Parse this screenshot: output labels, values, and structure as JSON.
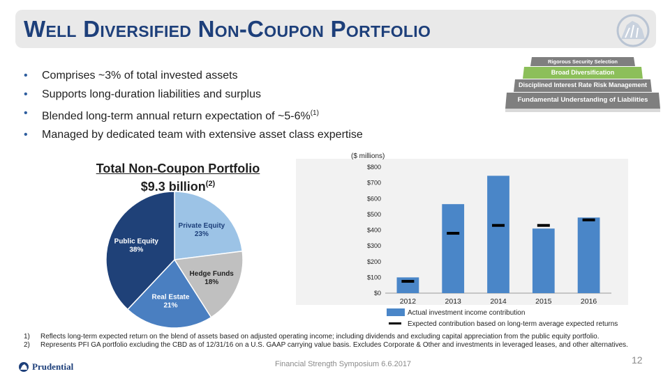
{
  "header": {
    "title": "Well Diversified Non-Coupon Portfolio"
  },
  "pyramid": {
    "levels": [
      "Rigorous Security Selection",
      "Broad Diversification",
      "Disciplined Interest Rate Risk Management",
      "Fundamental Understanding of Liabilities"
    ],
    "highlight_color": "#8cbf5a"
  },
  "bullets": [
    {
      "text": "Comprises ~3% of total invested assets",
      "sup": ""
    },
    {
      "text": "Supports long-duration liabilities and surplus",
      "sup": ""
    },
    {
      "text": "Blended long-term annual return expectation of ~5-6%",
      "sup": "(1)"
    },
    {
      "text": "Managed by dedicated team with extensive asset class expertise",
      "sup": ""
    }
  ],
  "pie": {
    "title_line1": "Total Non-Coupon Portfolio",
    "title_line2": "$9.3 billion",
    "title_sup": "(2)"
  },
  "chart_data": [
    {
      "type": "pie",
      "slices": [
        {
          "label": "Private Equity",
          "value": 23,
          "value_label": "23%",
          "color": "#9cc3e6",
          "text_color": "#1d3f7a"
        },
        {
          "label": "Hedge Funds",
          "value": 18,
          "value_label": "18%",
          "color": "#c0c0c0",
          "text_color": "#1f1f1f"
        },
        {
          "label": "Real Estate",
          "value": 21,
          "value_label": "21%",
          "color": "#4a7fc1",
          "text_color": "#ffffff"
        },
        {
          "label": "Public Equity",
          "value": 38,
          "value_label": "38%",
          "color": "#1f4178",
          "text_color": "#ffffff"
        }
      ]
    },
    {
      "type": "bar",
      "unit_label": "($ millions)",
      "categories": [
        "2012",
        "2013",
        "2014",
        "2015",
        "2016"
      ],
      "series": [
        {
          "name": "Actual investment income contribution",
          "values": [
            100,
            565,
            745,
            410,
            480
          ],
          "color": "#4a86c8"
        },
        {
          "name": "Expected contribution based on long-term average expected returns",
          "values": [
            75,
            380,
            430,
            430,
            465
          ],
          "color": "#000000"
        }
      ],
      "yticks": [
        "$0",
        "$100",
        "$200",
        "$300",
        "$400",
        "$500",
        "$600",
        "$700",
        "$800"
      ],
      "ylim": [
        0,
        800
      ]
    }
  ],
  "footnotes": [
    {
      "num": "1)",
      "text": "Reflects long-term expected return on the blend of assets based on adjusted operating income; including dividends and excluding capital appreciation from the public equity portfolio."
    },
    {
      "num": "2)",
      "text": "Represents PFI GA portfolio excluding the CBD as of 12/31/16 on a U.S. GAAP carrying value basis. Excludes Corporate & Other and investments in leveraged leases, and other alternatives."
    }
  ],
  "footer": {
    "brand": "Prudential",
    "center": "Financial Strength Symposium 6.6.2017",
    "page": "12"
  },
  "icons": {
    "logo": "rock-of-gibraltar-icon",
    "brand_mark": "rock-logo-icon"
  }
}
